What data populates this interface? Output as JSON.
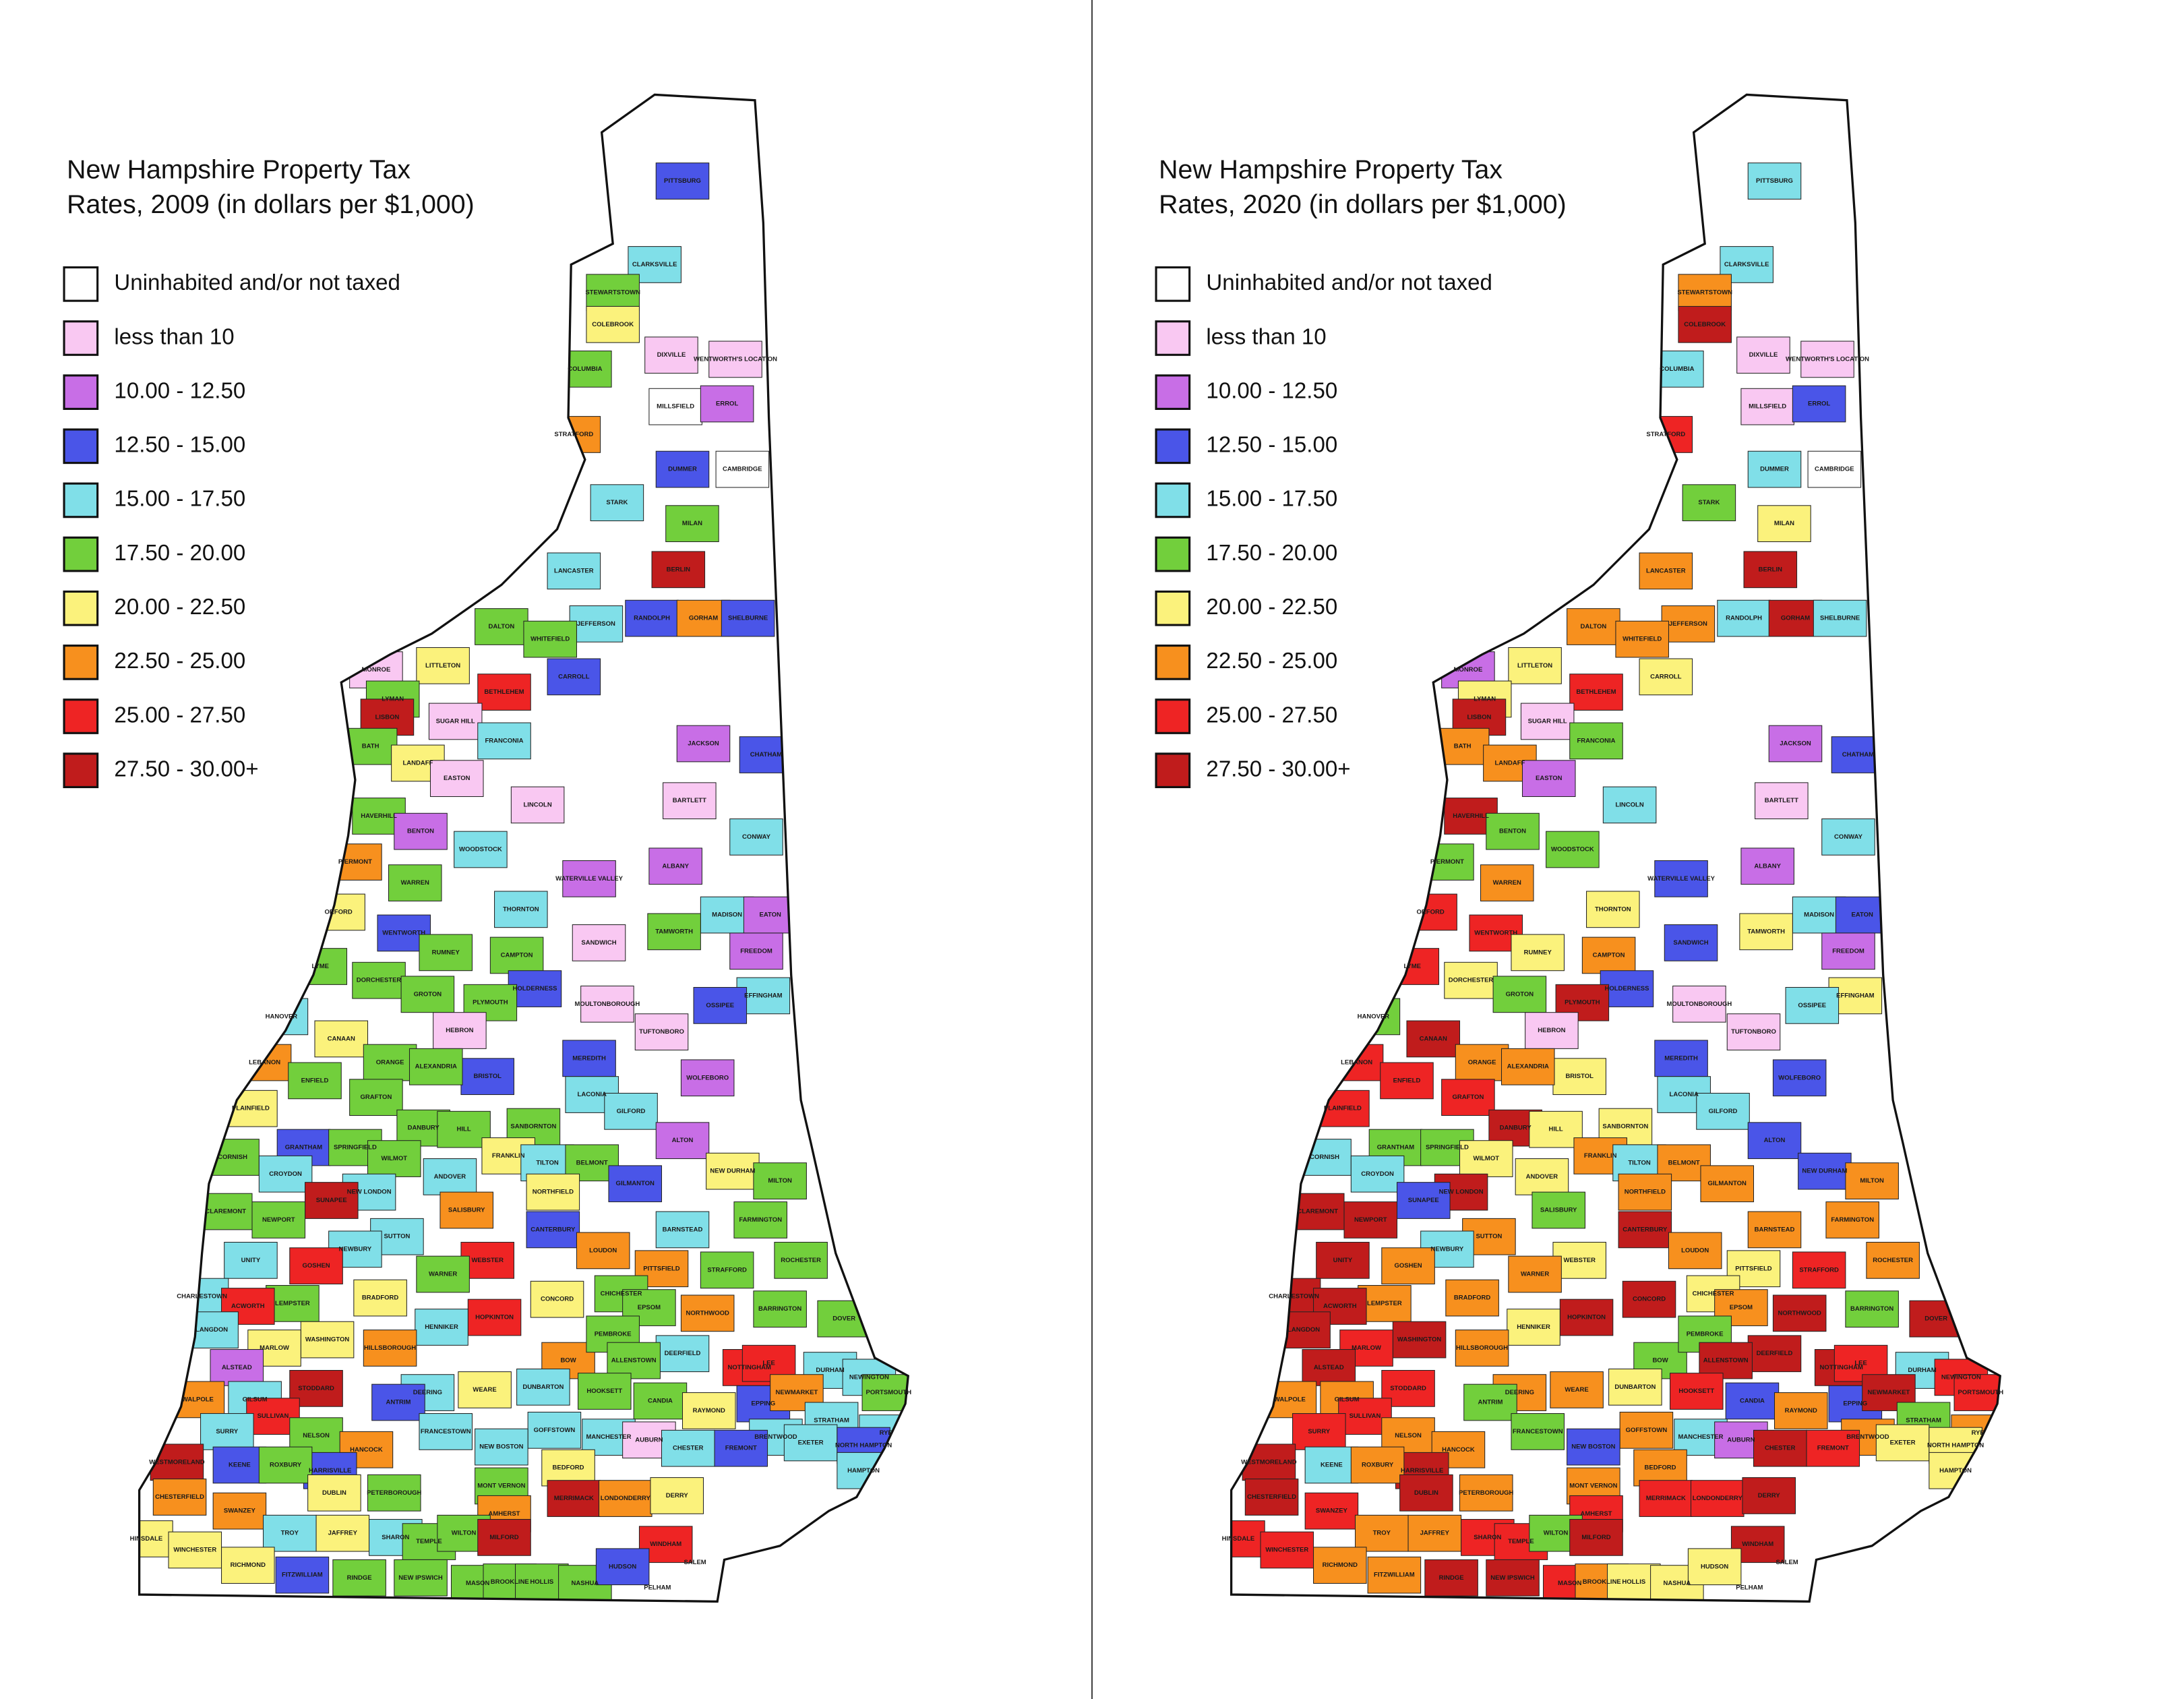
{
  "maps": [
    {
      "title": [
        "New Hampshire Property Tax",
        "Rates, 2009 (in dollars per $1,000)"
      ],
      "rate_class": [
        3,
        4,
        5,
        6,
        1,
        1,
        5,
        7,
        0,
        2,
        3,
        0,
        4,
        5,
        9,
        4,
        3,
        7,
        3,
        4,
        5,
        5,
        6,
        3,
        8,
        1,
        5,
        9,
        1,
        4,
        2,
        3,
        5,
        6,
        1,
        1,
        1,
        5,
        2,
        4,
        4,
        7,
        2,
        5,
        2,
        6,
        3,
        4,
        4,
        2,
        1,
        5,
        5,
        5,
        5,
        2,
        5,
        5,
        3,
        1,
        4,
        3,
        5,
        4,
        6,
        1,
        1,
        3,
        3,
        7,
        2,
        5,
        5,
        5,
        5,
        4,
        6,
        4,
        5,
        5,
        5,
        3,
        5,
        2,
        5,
        6,
        4,
        5,
        5,
        6,
        4,
        4,
        5,
        6,
        3,
        4,
        9,
        5,
        7,
        5,
        5,
        4,
        4,
        3,
        4,
        7,
        5,
        5,
        4,
        8,
        7,
        5,
        8,
        4,
        5,
        6,
        6,
        5,
        5,
        5,
        7,
        5,
        8,
        8,
        4,
        4,
        6,
        6,
        7,
        7,
        5,
        4,
        8,
        8,
        4,
        2,
        9,
        5,
        7,
        4,
        4,
        6,
        4,
        5,
        5,
        3,
        4,
        5,
        7,
        8,
        3,
        4,
        5,
        6,
        4,
        4,
        4,
        1,
        4,
        4,
        7,
        4,
        4,
        4,
        4,
        3,
        9,
        3,
        3,
        3,
        4,
        5,
        6,
        7,
        6,
        5,
        5,
        9,
        7,
        6,
        7,
        7,
        4,
        6,
        4,
        5,
        5,
        9,
        8,
        6,
        6,
        6,
        3,
        5,
        5,
        5,
        5,
        5,
        5,
        3
      ]
    },
    {
      "title": [
        "New Hampshire Property Tax",
        "Rates, 2020 (in dollars per $1,000)"
      ],
      "rate_class": [
        4,
        4,
        7,
        9,
        1,
        1,
        4,
        8,
        1,
        3,
        4,
        0,
        5,
        6,
        9,
        7,
        4,
        9,
        4,
        7,
        7,
        7,
        6,
        6,
        8,
        2,
        6,
        9,
        1,
        5,
        2,
        3,
        7,
        7,
        2,
        4,
        1,
        9,
        5,
        5,
        4,
        5,
        2,
        7,
        3,
        8,
        8,
        6,
        4,
        3,
        3,
        6,
        6,
        7,
        8,
        2,
        6,
        5,
        3,
        1,
        6,
        4,
        9,
        5,
        9,
        1,
        1,
        6,
        3,
        8,
        3,
        8,
        7,
        7,
        8,
        4,
        8,
        4,
        9,
        6,
        6,
        5,
        5,
        3,
        6,
        7,
        4,
        7,
        4,
        3,
        4,
        6,
        7,
        7,
        7,
        9,
        3,
        9,
        5,
        9,
        7,
        7,
        7,
        9,
        4,
        7,
        7,
        8,
        9,
        6,
        6,
        7,
        7,
        9,
        7,
        7,
        9,
        6,
        5,
        7,
        9,
        9,
        9,
        9,
        6,
        9,
        9,
        8,
        7,
        5,
        5,
        9,
        9,
        8,
        4,
        9,
        8,
        9,
        7,
        7,
        7,
        7,
        6,
        8,
        3,
        3,
        8,
        8,
        9,
        8,
        5,
        8,
        7,
        7,
        7,
        5,
        4,
        2,
        5,
        7,
        7,
        7,
        6,
        3,
        9,
        6,
        9,
        9,
        4,
        8,
        6,
        7,
        7,
        9,
        9,
        7,
        7,
        8,
        8,
        9,
        8,
        8,
        7,
        7,
        8,
        8,
        5,
        9,
        9,
        8,
        8,
        7,
        7,
        9,
        9,
        8,
        7,
        6,
        6,
        6
      ]
    }
  ],
  "legend": [
    {
      "label": "Uninhabited and/or not taxed",
      "color": "#ffffff"
    },
    {
      "label": "less than 10",
      "color": "#f9c8f2"
    },
    {
      "label": "10.00 - 12.50",
      "color": "#c86ee6"
    },
    {
      "label": "12.50 - 15.00",
      "color": "#4a55e8"
    },
    {
      "label": "15.00 - 17.50",
      "color": "#80dfe8"
    },
    {
      "label": "17.50 - 20.00",
      "color": "#72cf3c"
    },
    {
      "label": "20.00 - 22.50",
      "color": "#fbf27c"
    },
    {
      "label": "22.50 - 25.00",
      "color": "#f7901e"
    },
    {
      "label": "25.00 - 27.50",
      "color": "#ee2424"
    },
    {
      "label": "27.50 - 30.00+",
      "color": "#c01c1c"
    }
  ],
  "towns": [
    "PITTSBURG",
    "CLARKSVILLE",
    "STEWARTSTOWN",
    "COLEBROOK",
    "DIXVILLE",
    "WENTWORTH'S LOCATION",
    "COLUMBIA",
    "STRATFORD",
    "MILLSFIELD",
    "ERROL",
    "DUMMER",
    "CAMBRIDGE",
    "STARK",
    "MILAN",
    "BERLIN",
    "LANCASTER",
    "RANDOLPH",
    "GORHAM",
    "SHELBURNE",
    "JEFFERSON",
    "DALTON",
    "WHITEFIELD",
    "LITTLETON",
    "CARROLL",
    "BETHLEHEM",
    "MONROE",
    "LYMAN",
    "LISBON",
    "SUGAR HILL",
    "FRANCONIA",
    "JACKSON",
    "CHATHAM",
    "BATH",
    "LANDAFF",
    "EASTON",
    "LINCOLN",
    "BARTLETT",
    "HAVERHILL",
    "BENTON",
    "WOODSTOCK",
    "CONWAY",
    "PIERMONT",
    "ALBANY",
    "WARREN",
    "WATERVILLE VALLEY",
    "ORFORD",
    "WENTWORTH",
    "THORNTON",
    "MADISON",
    "EATON",
    "SANDWICH",
    "TAMWORTH",
    "RUMNEY",
    "CAMPTON",
    "LYME",
    "FREEDOM",
    "DORCHESTER",
    "GROTON",
    "HOLDERNESS",
    "MOULTONBOROUGH",
    "EFFINGHAM",
    "OSSIPEE",
    "PLYMOUTH",
    "HANOVER",
    "CANAAN",
    "HEBRON",
    "TUFTONBORO",
    "BRISTOL",
    "MEREDITH",
    "LEBANON",
    "WOLFEBORO",
    "ENFIELD",
    "ORANGE",
    "ALEXANDRIA",
    "GRAFTON",
    "LACONIA",
    "PLAINFIELD",
    "GILFORD",
    "DANBURY",
    "HILL",
    "SANBORNTON",
    "GRANTHAM",
    "SPRINGFIELD",
    "ALTON",
    "WILMOT",
    "FRANKLIN",
    "TILTON",
    "BELMONT",
    "CORNISH",
    "NEW DURHAM",
    "CROYDON",
    "ANDOVER",
    "MILTON",
    "NORTHFIELD",
    "GILMANTON",
    "NEW LONDON",
    "SUNAPEE",
    "CLAREMONT",
    "SALISBURY",
    "NEWPORT",
    "FARMINGTON",
    "SUTTON",
    "BARNSTEAD",
    "CANTERBURY",
    "NEWBURY",
    "LOUDON",
    "ROCHESTER",
    "STRAFFORD",
    "UNITY",
    "WEBSTER",
    "PITTSFIELD",
    "WARNER",
    "GOSHEN",
    "CHARLESTOWN",
    "LEMPSTER",
    "BRADFORD",
    "CONCORD",
    "CHICHESTER",
    "BARRINGTON",
    "EPSOM",
    "NORTHWOOD",
    "DOVER",
    "ACWORTH",
    "HOPKINTON",
    "HENNIKER",
    "LANGDON",
    "WASHINGTON",
    "MARLOW",
    "HILLSBOROUGH",
    "BOW",
    "PEMBROKE",
    "DEERFIELD",
    "NOTTINGHAM",
    "LEE",
    "DURHAM",
    "ALSTEAD",
    "STODDARD",
    "ALLENSTOWN",
    "WALPOLE",
    "GILSUM",
    "DEERING",
    "WEARE",
    "DUNBARTON",
    "HOOKSETT",
    "CANDIA",
    "EPPING",
    "NEWINGTON",
    "PORTSMOUTH",
    "NEWMARKET",
    "SULLIVAN",
    "ANTRIM",
    "SURRY",
    "NELSON",
    "RAYMOND",
    "GOFFSTOWN",
    "FRANCESTOWN",
    "MANCHESTER",
    "AUBURN",
    "STRATHAM",
    "RYE",
    "HANCOCK",
    "BRENTWOOD",
    "EXETER",
    "NEW BOSTON",
    "CHESTER",
    "NORTH HAMPTON",
    "WESTMORELAND",
    "HARRISVILLE",
    "KEENE",
    "FREMONT",
    "HAMPTON",
    "ROXBURY",
    "BEDFORD",
    "CHESTERFIELD",
    "DUBLIN",
    "PETERBOROUGH",
    "MONT VERNON",
    "MERRIMACK",
    "LONDONDERRY",
    "DERRY",
    "SWANZEY",
    "AMHERST",
    "TROY",
    "JAFFREY",
    "SHARON",
    "TEMPLE",
    "WILTON",
    "MILFORD",
    "WINDHAM",
    "HINSDALE",
    "WINCHESTER",
    "RICHMOND",
    "FITZWILLIAM",
    "RINDGE",
    "NEW IPSWICH",
    "MASON",
    "BROOKLINE",
    "HOLLIS",
    "NASHUA",
    "HUDSON",
    "PELHAM",
    "SALEM"
  ]
}
